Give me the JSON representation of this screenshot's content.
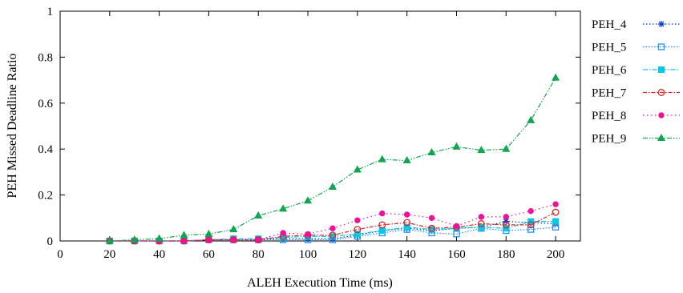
{
  "chart_data": {
    "type": "line",
    "title": "",
    "xlabel": "ALEH Execution Time (ms)",
    "ylabel": "PEH Missed Deadline Ratio",
    "xlim": [
      0,
      210
    ],
    "ylim": [
      0,
      1
    ],
    "xticks": [
      0,
      20,
      40,
      60,
      80,
      100,
      120,
      140,
      160,
      180,
      200
    ],
    "yticks": [
      0,
      0.2,
      0.4,
      0.6,
      0.8,
      1
    ],
    "xtick_labels": [
      "0",
      "20",
      "40",
      "60",
      "80",
      "100",
      "120",
      "140",
      "160",
      "180",
      "200"
    ],
    "ytick_labels": [
      "0",
      "0.2",
      "0.4",
      "0.6",
      "0.8",
      "1"
    ],
    "grid": false,
    "legend_position": "right",
    "x": [
      20,
      30,
      40,
      50,
      60,
      70,
      80,
      90,
      100,
      110,
      120,
      130,
      140,
      150,
      160,
      170,
      180,
      190,
      200
    ],
    "series": [
      {
        "name": "PEH_4",
        "color": "#0033cc",
        "marker": "star",
        "values": [
          0.0,
          0.0,
          0.0,
          0.0,
          0.005,
          0.005,
          0.005,
          0.01,
          0.01,
          0.01,
          0.025,
          0.045,
          0.055,
          0.045,
          0.055,
          0.06,
          0.085,
          0.08,
          0.075
        ]
      },
      {
        "name": "PEH_5",
        "color": "#1e90ff",
        "marker": "square",
        "values": [
          0.0,
          0.0,
          0.0,
          0.0,
          0.005,
          0.005,
          0.005,
          0.005,
          0.005,
          0.005,
          0.02,
          0.035,
          0.05,
          0.035,
          0.03,
          0.055,
          0.045,
          0.05,
          0.06
        ]
      },
      {
        "name": "PEH_6",
        "color": "#00c8e8",
        "marker": "filled-square",
        "values": [
          0.0,
          0.0,
          0.0,
          0.0,
          0.005,
          0.01,
          0.01,
          0.015,
          0.02,
          0.02,
          0.03,
          0.045,
          0.06,
          0.05,
          0.055,
          0.06,
          0.055,
          0.085,
          0.085
        ]
      },
      {
        "name": "PEH_7",
        "color": "#dd2222",
        "marker": "circle",
        "values": [
          0.0,
          0.0,
          0.0,
          0.0,
          0.005,
          0.005,
          0.005,
          0.02,
          0.025,
          0.025,
          0.05,
          0.07,
          0.08,
          0.055,
          0.06,
          0.075,
          0.07,
          0.07,
          0.125
        ]
      },
      {
        "name": "PEH_8",
        "color": "#ee1199",
        "marker": "filled-circle",
        "values": [
          0.0,
          0.0,
          0.0,
          0.0,
          0.005,
          0.005,
          0.005,
          0.035,
          0.03,
          0.055,
          0.09,
          0.12,
          0.115,
          0.1,
          0.065,
          0.105,
          0.105,
          0.13,
          0.16
        ]
      },
      {
        "name": "PEH_9",
        "color": "#11a550",
        "marker": "triangle",
        "values": [
          0.0,
          0.005,
          0.01,
          0.025,
          0.03,
          0.05,
          0.11,
          0.14,
          0.175,
          0.235,
          0.31,
          0.355,
          0.35,
          0.385,
          0.41,
          0.395,
          0.4,
          0.525,
          0.71
        ]
      }
    ]
  }
}
